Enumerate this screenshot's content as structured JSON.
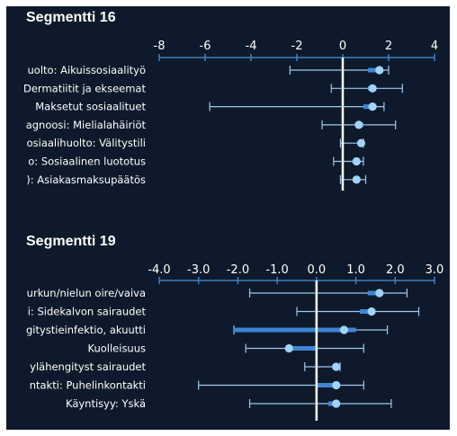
{
  "colors": {
    "panel_bg": "#0e1a2b",
    "text": "#ffffff",
    "axis": "#3d7fc4",
    "ci_line": "#9fc7ee",
    "bar": "#3d86d6",
    "point": "#9fd4f7",
    "zero_line": "#ffffff"
  },
  "chart_data": [
    {
      "type": "forest",
      "title": "Segmentti 16",
      "xlim": [
        -8,
        4
      ],
      "xticks": [
        "-8",
        "-6",
        "-4",
        "-2",
        "0",
        "2",
        "4"
      ],
      "xtick_values": [
        -8,
        -6,
        -4,
        -2,
        0,
        2,
        4
      ],
      "grid": false,
      "rows": [
        {
          "label": "uolto: Aikuissosiaalityö",
          "estimate": 1.6,
          "ci": [
            -2.3,
            2.0
          ],
          "bar": [
            1.1,
            1.6
          ]
        },
        {
          "label": "Dermatiitit ja ekseemat",
          "estimate": 1.3,
          "ci": [
            -0.5,
            2.6
          ],
          "bar": [
            1.1,
            1.3
          ]
        },
        {
          "label": "Maksetut sosiaalituet",
          "estimate": 1.3,
          "ci": [
            -5.8,
            1.8
          ],
          "bar": [
            0.9,
            1.3
          ]
        },
        {
          "label": "agnoosi: Mielialahäiriöt",
          "estimate": 0.7,
          "ci": [
            -0.9,
            2.3
          ],
          "bar": [
            0.7,
            0.9
          ]
        },
        {
          "label": "osiaalihuolto: Välitystili",
          "estimate": 0.8,
          "ci": [
            -0.1,
            0.9
          ],
          "bar": [
            0.7,
            0.8
          ]
        },
        {
          "label": "o: Sosiaalinen luototus",
          "estimate": 0.6,
          "ci": [
            -0.4,
            0.9
          ],
          "bar": [
            0.6,
            0.7
          ]
        },
        {
          "label": "): Asiakasmaksupäätös",
          "estimate": 0.6,
          "ci": [
            -0.1,
            1.0
          ],
          "bar": [
            0.6,
            0.7
          ]
        }
      ]
    },
    {
      "type": "forest",
      "title": "Segmentti 19",
      "xlim": [
        -4.0,
        3.0
      ],
      "xticks": [
        "-4.0",
        "-3.0",
        "-2.0",
        "-1.0",
        "0.0",
        "1.0",
        "2.0",
        "3.0"
      ],
      "xtick_values": [
        -4,
        -3,
        -2,
        -1,
        0,
        1,
        2,
        3
      ],
      "grid": false,
      "rows": [
        {
          "label": "urkun/nielun oire/vaiva",
          "estimate": 1.6,
          "ci": [
            -1.7,
            2.3
          ],
          "bar": [
            1.3,
            1.6
          ]
        },
        {
          "label": "i: Sidekalvon sairaudet",
          "estimate": 1.4,
          "ci": [
            -0.5,
            2.6
          ],
          "bar": [
            1.1,
            1.4
          ]
        },
        {
          "label": "gitystieinfektio, akuutti",
          "estimate": 0.7,
          "ci": [
            -2.1,
            1.8
          ],
          "bar": [
            -2.1,
            1.0
          ]
        },
        {
          "label": "Kuolleisuus",
          "estimate": -0.7,
          "ci": [
            -1.8,
            1.2
          ],
          "bar": [
            -0.7,
            0.0
          ]
        },
        {
          "label": "ylähengityst sairaudet",
          "estimate": 0.5,
          "ci": [
            -0.3,
            0.6
          ],
          "bar": [
            0.4,
            0.5
          ]
        },
        {
          "label": "ntakti: Puhelinkontakti",
          "estimate": 0.5,
          "ci": [
            -3.0,
            1.2
          ],
          "bar": [
            0.0,
            0.6
          ]
        },
        {
          "label": "Käyntisyy: Yskä",
          "estimate": 0.5,
          "ci": [
            -1.7,
            1.9
          ],
          "bar": [
            0.3,
            0.5
          ]
        }
      ]
    }
  ]
}
